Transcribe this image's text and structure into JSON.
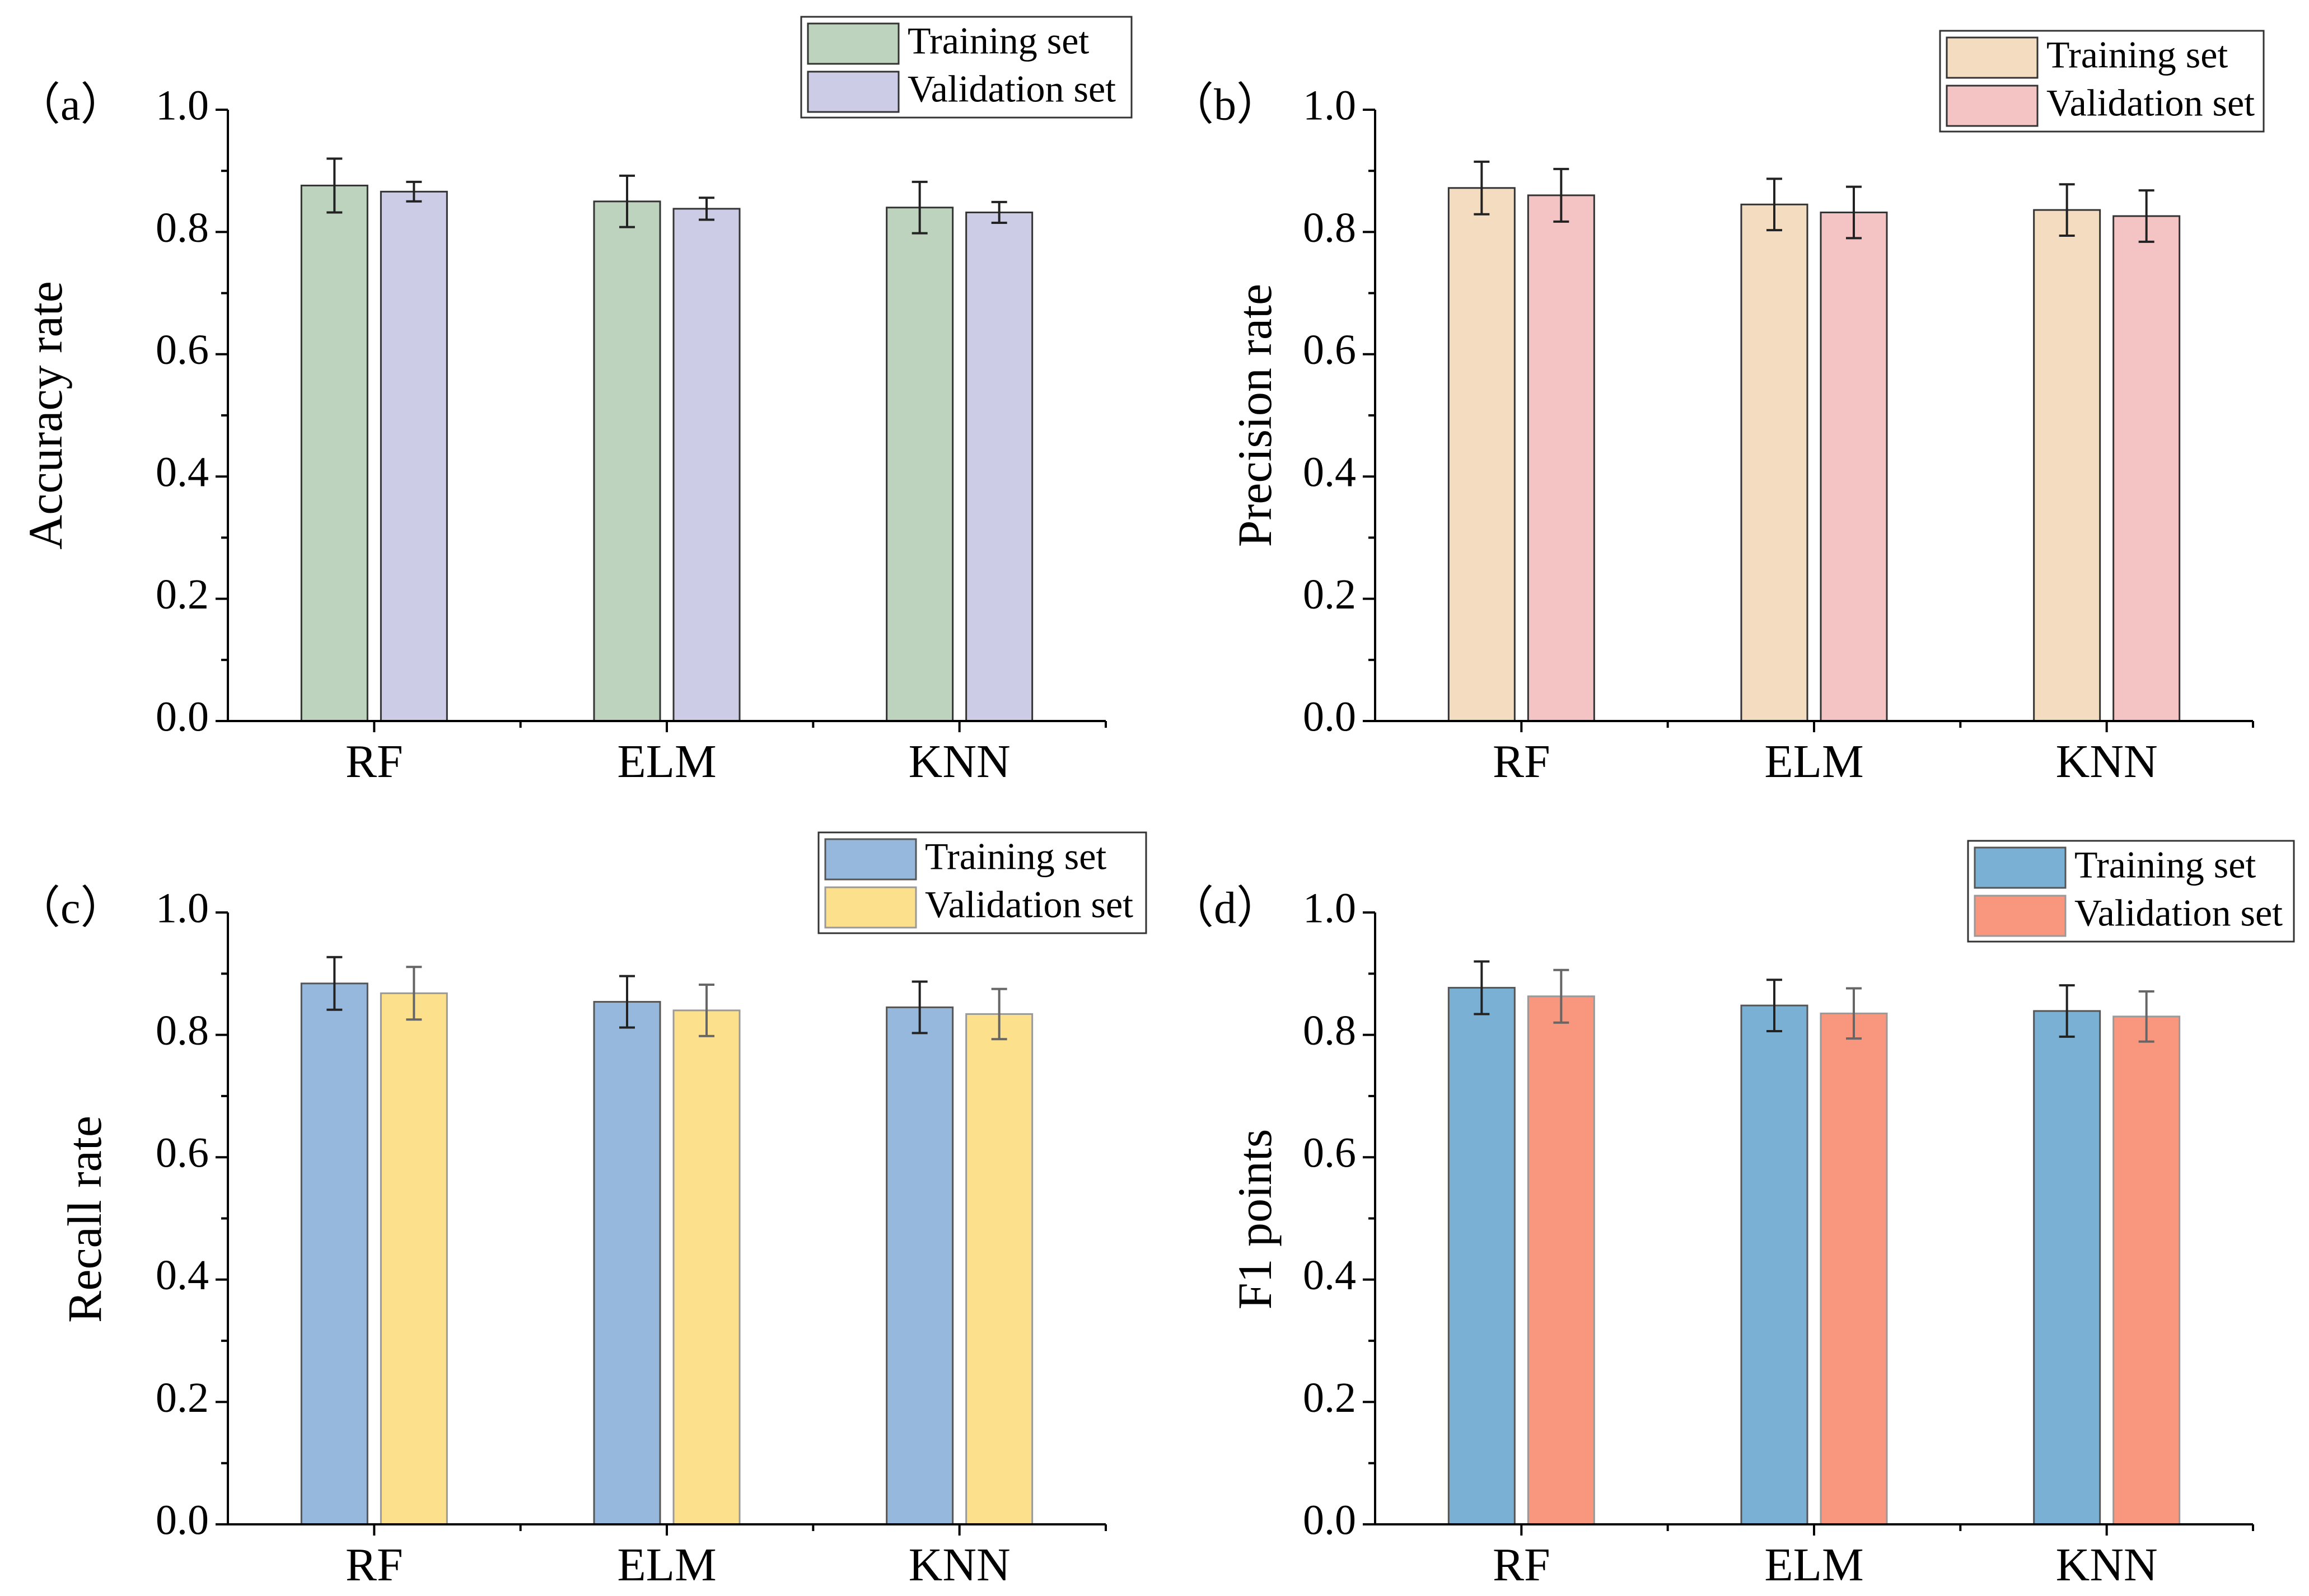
{
  "chart_data": [
    {
      "type": "bar",
      "panel_label": "（a）",
      "categories": [
        "RF",
        "ELM",
        "KNN"
      ],
      "ylabel": "Accuracy rate",
      "xlabel": "",
      "ylim": [
        0,
        1.0
      ],
      "yticks": [
        "0.0",
        "0.2",
        "0.4",
        "0.6",
        "0.8",
        "1.0"
      ],
      "legend_position": "top-right",
      "series": [
        {
          "name": "Training set",
          "values": [
            0.876,
            0.85,
            0.84
          ],
          "errors": [
            0.044,
            0.042,
            0.042
          ],
          "color": "#bdd3bd",
          "edge": "#333333"
        },
        {
          "name": "Validation set",
          "values": [
            0.866,
            0.838,
            0.832
          ],
          "errors": [
            0.016,
            0.018,
            0.017
          ],
          "color": "#cccce6",
          "edge": "#333333"
        }
      ]
    },
    {
      "type": "bar",
      "panel_label": "（b）",
      "categories": [
        "RF",
        "ELM",
        "KNN"
      ],
      "ylabel": "Precision rate",
      "xlabel": "",
      "ylim": [
        0,
        1.0
      ],
      "yticks": [
        "0.0",
        "0.2",
        "0.4",
        "0.6",
        "0.8",
        "1.0"
      ],
      "legend_position": "top-right",
      "series": [
        {
          "name": "Training set",
          "values": [
            0.872,
            0.845,
            0.836
          ],
          "errors": [
            0.043,
            0.042,
            0.042
          ],
          "color": "#f3dcc0",
          "edge": "#333333"
        },
        {
          "name": "Validation set",
          "values": [
            0.86,
            0.832,
            0.826
          ],
          "errors": [
            0.043,
            0.042,
            0.042
          ],
          "color": "#f4c4c4",
          "edge": "#333333"
        }
      ]
    },
    {
      "type": "bar",
      "panel_label": "（c）",
      "categories": [
        "RF",
        "ELM",
        "KNN"
      ],
      "ylabel": "Recall rate",
      "xlabel": "",
      "ylim": [
        0,
        1.0
      ],
      "yticks": [
        "0.0",
        "0.2",
        "0.4",
        "0.6",
        "0.8",
        "1.0"
      ],
      "legend_position": "top-right",
      "series": [
        {
          "name": "Training set",
          "values": [
            0.884,
            0.854,
            0.845
          ],
          "errors": [
            0.043,
            0.042,
            0.042
          ],
          "color": "#95b8dc",
          "edge": "#555555"
        },
        {
          "name": "Validation set",
          "values": [
            0.868,
            0.84,
            0.834
          ],
          "errors": [
            0.043,
            0.042,
            0.041
          ],
          "color": "#fde08c",
          "edge": "#999999"
        }
      ]
    },
    {
      "type": "bar",
      "panel_label": "（d）",
      "categories": [
        "RF",
        "ELM",
        "KNN"
      ],
      "ylabel": "F1 points",
      "xlabel": "",
      "ylim": [
        0,
        1.0
      ],
      "yticks": [
        "0.0",
        "0.2",
        "0.4",
        "0.6",
        "0.8",
        "1.0"
      ],
      "legend_position": "top-right",
      "series": [
        {
          "name": "Training set",
          "values": [
            0.877,
            0.848,
            0.839
          ],
          "errors": [
            0.043,
            0.042,
            0.042
          ],
          "color": "#7ab0d4",
          "edge": "#555555"
        },
        {
          "name": "Validation set",
          "values": [
            0.863,
            0.835,
            0.83
          ],
          "errors": [
            0.043,
            0.041,
            0.041
          ],
          "color": "#f9967e",
          "edge": "#999999"
        }
      ]
    }
  ]
}
